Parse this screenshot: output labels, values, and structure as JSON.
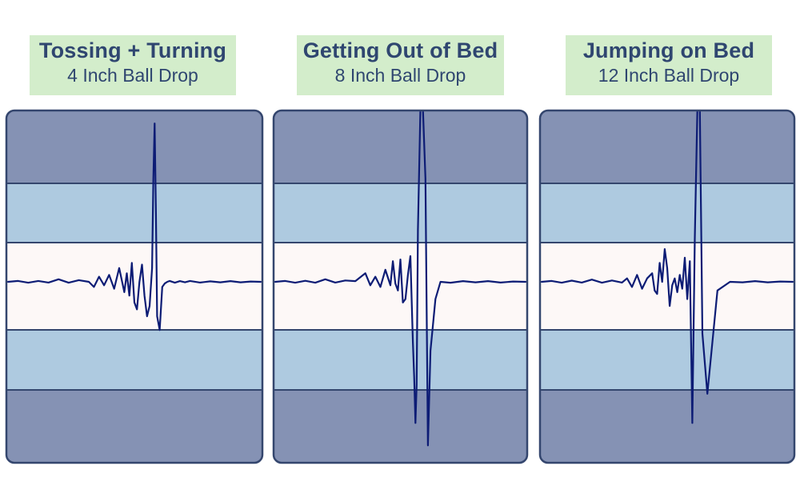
{
  "colors": {
    "outer_band": "#8592b4",
    "middle_band": "#aecae0",
    "center_band": "#fdf8f7",
    "border": "#34466e",
    "signal": "#0d1c75",
    "label_bg": "#d3edcb",
    "label_text": "#2f4670"
  },
  "chart_data": [
    {
      "type": "line",
      "title": "Tossing + Turning",
      "subtitle": "4 Inch Ball Drop",
      "ylim": [
        -100,
        100
      ],
      "bands": [
        70,
        40,
        0,
        -40,
        -70
      ],
      "x": [
        0,
        4,
        8,
        12,
        16,
        20,
        24,
        28,
        32,
        34,
        36,
        38,
        40,
        42,
        44,
        46,
        47,
        48,
        49,
        50,
        51,
        52,
        53,
        54,
        55,
        56,
        57,
        57.5,
        58,
        58.5,
        59,
        60,
        61,
        62,
        63,
        64,
        66,
        68,
        70,
        72,
        76,
        80,
        84,
        88,
        92,
        96,
        100
      ],
      "values": [
        0,
        0.5,
        -0.5,
        0.5,
        -0.4,
        1.5,
        -0.5,
        1,
        0,
        -3,
        3,
        -2,
        4,
        -4,
        8,
        -6,
        5,
        -8,
        11,
        -12,
        -16,
        0,
        10,
        -8,
        -20,
        -14,
        8,
        60,
        92,
        40,
        -20,
        -28,
        -3,
        -1,
        0,
        0.5,
        -0.5,
        0.4,
        -0.3,
        0.5,
        -0.4,
        0.3,
        -0.3,
        0.4,
        -0.3,
        0.2,
        0
      ]
    },
    {
      "type": "line",
      "title": "Getting Out of Bed",
      "subtitle": "8 Inch Ball Drop",
      "ylim": [
        -100,
        100
      ],
      "bands": [
        70,
        40,
        0,
        -40,
        -70
      ],
      "x": [
        0,
        4,
        8,
        12,
        16,
        20,
        24,
        28,
        32,
        36,
        38,
        40,
        42,
        44,
        46,
        47,
        48,
        49,
        50,
        51,
        52,
        53,
        54,
        55,
        55.5,
        56,
        56.5,
        57,
        58,
        59,
        60,
        61,
        62,
        64,
        66,
        70,
        75,
        80,
        85,
        90,
        95,
        100
      ],
      "values": [
        0,
        0.5,
        -0.5,
        0.6,
        -0.5,
        1.5,
        -0.4,
        0.8,
        0.4,
        5,
        -2,
        3,
        -3,
        7,
        -2,
        12,
        -1,
        -5,
        13,
        -12,
        -10,
        4,
        15,
        -35,
        -55,
        -82,
        -60,
        30,
        100,
        100,
        60,
        -95,
        -40,
        -10,
        0,
        -0.5,
        0.4,
        -0.3,
        0.4,
        -0.4,
        0.2,
        0
      ]
    },
    {
      "type": "line",
      "title": "Jumping on Bed",
      "subtitle": "12 Inch Ball Drop",
      "ylim": [
        -100,
        100
      ],
      "bands": [
        70,
        40,
        0,
        -40,
        -70
      ],
      "x": [
        0,
        4,
        8,
        12,
        16,
        20,
        24,
        28,
        32,
        34,
        36,
        38,
        40,
        42,
        44,
        45,
        46,
        47,
        48,
        49,
        50,
        51,
        52,
        53,
        54,
        55,
        56,
        57,
        58,
        59,
        60,
        61,
        62,
        63,
        64,
        66,
        70,
        75,
        80,
        85,
        90,
        95,
        100
      ],
      "values": [
        0,
        0.5,
        -0.5,
        0.7,
        -0.4,
        1.3,
        -0.5,
        0.8,
        -0.4,
        2,
        -3,
        4,
        -4,
        2,
        5,
        -5,
        -7,
        11,
        0,
        19,
        8,
        -14,
        -2,
        2,
        -6,
        4,
        -4,
        14,
        -10,
        12,
        -82,
        25,
        100,
        100,
        -30,
        -65,
        -5,
        0,
        -0.3,
        0.4,
        -0.3,
        0.2,
        0
      ]
    }
  ]
}
